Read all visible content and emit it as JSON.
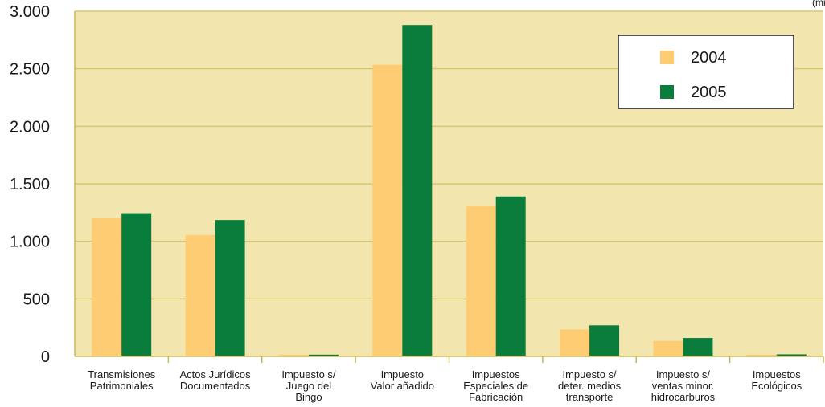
{
  "chart_data": {
    "type": "bar",
    "title": "",
    "unit_label": "(millones de euros)",
    "xlabel": "",
    "ylabel": "",
    "ylim": [
      0,
      3000
    ],
    "yticks": [
      0,
      500,
      1000,
      1500,
      2000,
      2500,
      3000
    ],
    "ytick_labels": [
      "0",
      "500",
      "1.000",
      "1.500",
      "2.000",
      "2.500",
      "3.000"
    ],
    "grid": true,
    "legend_position": "top-right",
    "categories": [
      [
        "Transmisiones",
        "Patrimoniales"
      ],
      [
        "Actos Jurídicos",
        "Documentados"
      ],
      [
        "Impuesto s/",
        "Juego del",
        "Bingo"
      ],
      [
        "Impuesto",
        "Valor añadido"
      ],
      [
        "Impuestos",
        "Especiales de",
        "Fabricación"
      ],
      [
        "Impuesto s/",
        "deter. medios",
        "transporte"
      ],
      [
        "Impuesto s/",
        "ventas minor.",
        "hidrocarburos"
      ],
      [
        "Impuestos",
        "Ecológicos"
      ]
    ],
    "series": [
      {
        "name": "2004",
        "color": "#fdcc73",
        "values": [
          1200,
          1055,
          15,
          2535,
          1310,
          235,
          135,
          15
        ]
      },
      {
        "name": "2005",
        "color": "#0a7d3c",
        "values": [
          1245,
          1185,
          15,
          2880,
          1390,
          270,
          160,
          18
        ]
      }
    ],
    "colors": {
      "plot_bg": "#f2e6ae",
      "grid": "#d8c874",
      "axis": "#c9b75a"
    }
  }
}
